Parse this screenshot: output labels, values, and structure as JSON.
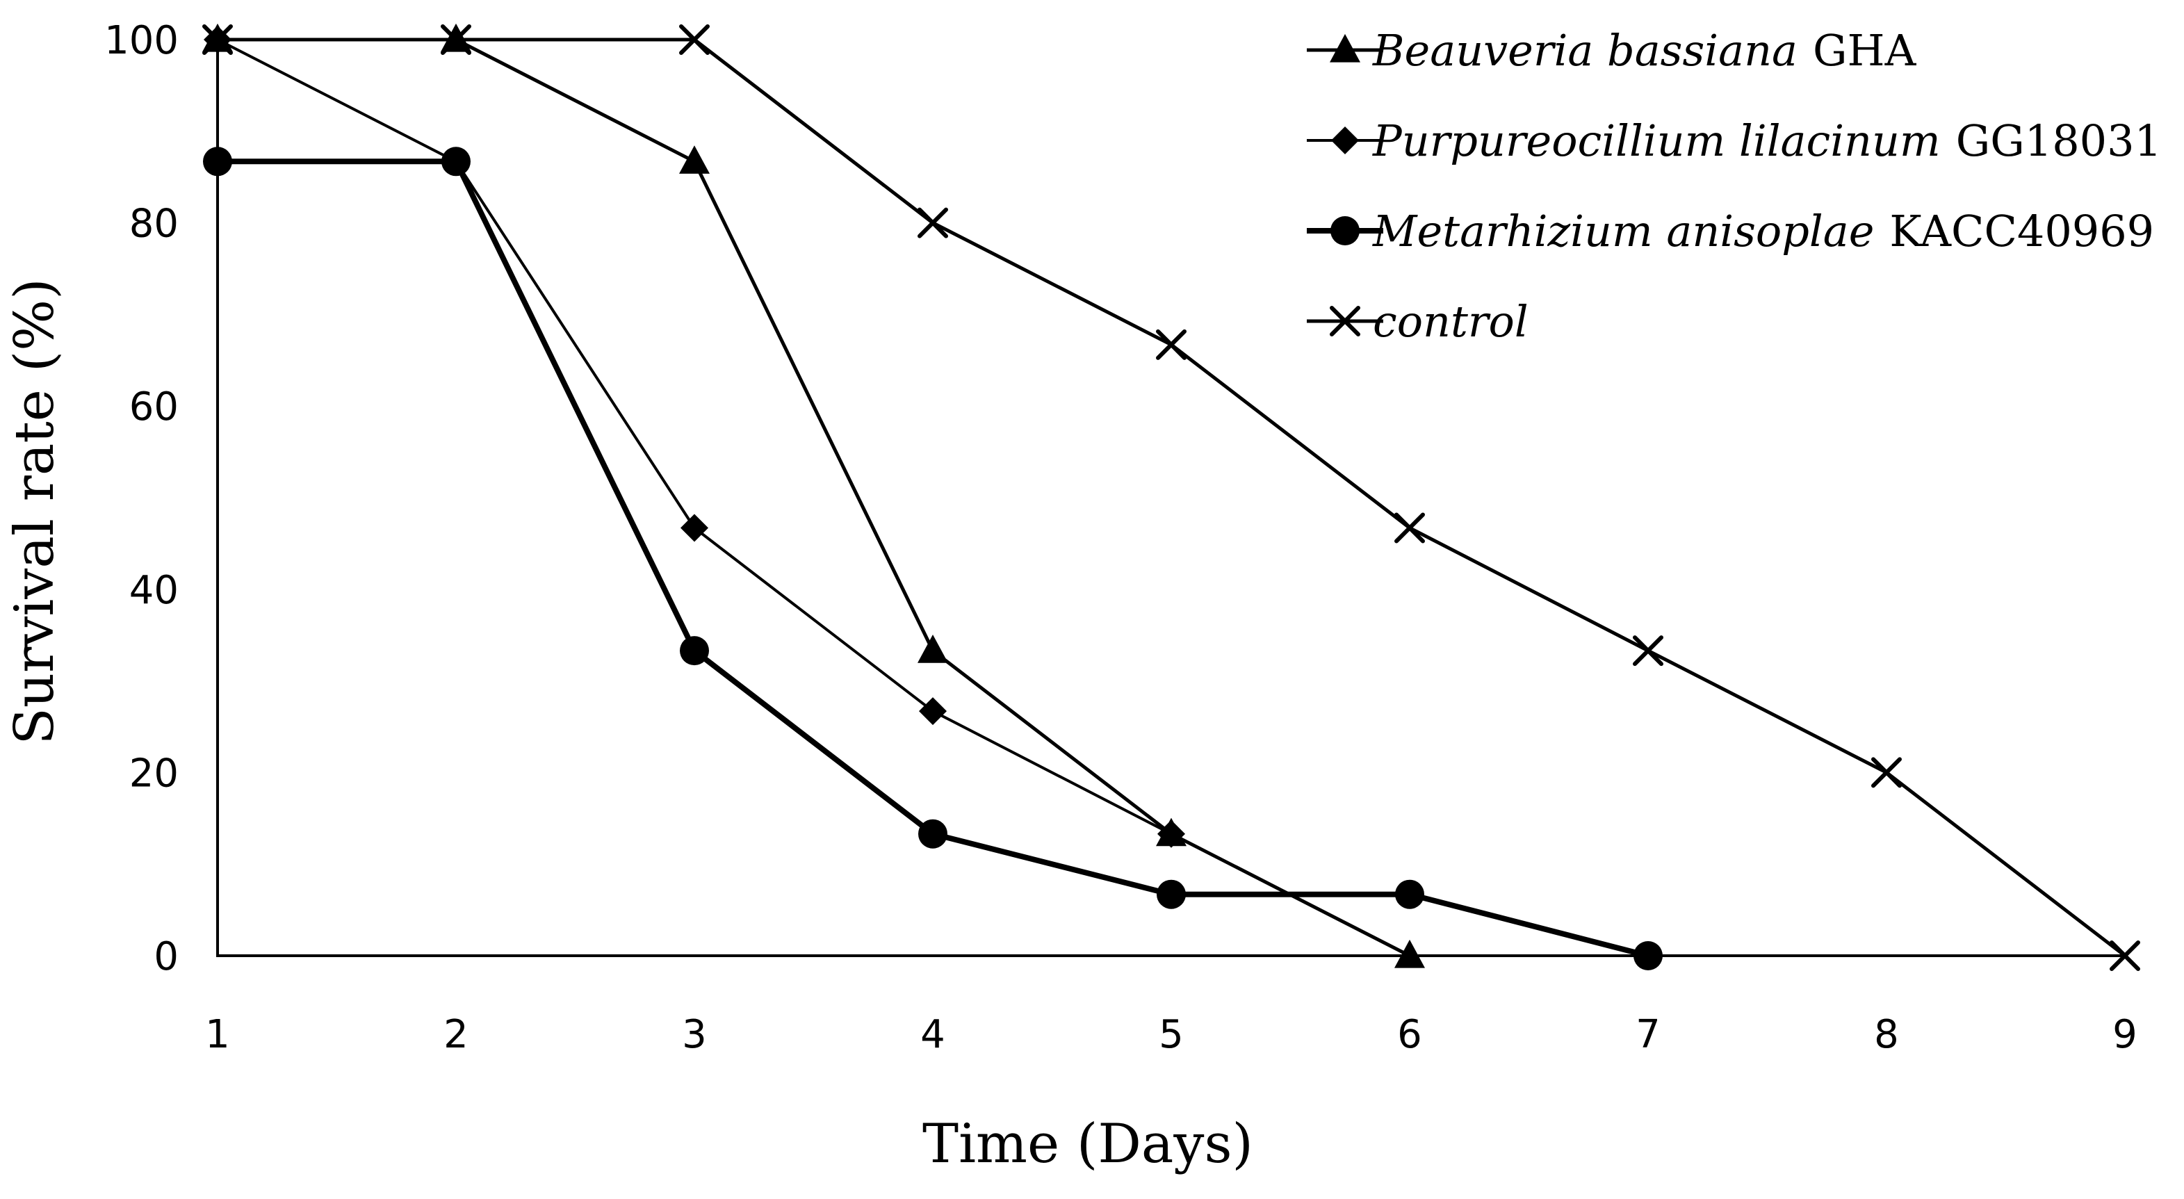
{
  "chart_data": {
    "type": "line",
    "title": "",
    "xlabel": "Time (Days)",
    "ylabel": "Survival rate (%)",
    "x": [
      1,
      2,
      3,
      4,
      5,
      6,
      7,
      8,
      9
    ],
    "xlim": [
      1,
      9
    ],
    "ylim": [
      0,
      100
    ],
    "yticks": [
      0,
      20,
      40,
      60,
      80,
      100
    ],
    "grid": false,
    "legend_position": "top-right",
    "series": [
      {
        "name": "Beauveria bassiana GHA",
        "name_italic": "Beauveria bassiana",
        "name_plain": "GHA",
        "marker": "triangle",
        "x": [
          1,
          2,
          3,
          4,
          5,
          6
        ],
        "values": [
          100,
          100,
          86.7,
          33.3,
          13.3,
          0
        ]
      },
      {
        "name": "Purpureocillium lilacinum GG18031",
        "name_italic": "Purpureocillium lilacinum",
        "name_plain": "GG18031",
        "marker": "diamond",
        "x": [
          1,
          2,
          3,
          4,
          5
        ],
        "values": [
          100,
          86.7,
          46.7,
          26.7,
          13.3
        ]
      },
      {
        "name": "Metarhizium anisoplae KACC40969",
        "name_italic": "Metarhizium anisoplae",
        "name_plain": "KACC40969",
        "marker": "circle",
        "x": [
          1,
          2,
          3,
          4,
          5,
          6,
          7
        ],
        "values": [
          86.7,
          86.7,
          33.3,
          13.3,
          6.7,
          6.7,
          0
        ]
      },
      {
        "name": "control",
        "name_italic": "control",
        "name_plain": "",
        "marker": "x",
        "x": [
          1,
          2,
          3,
          4,
          5,
          6,
          7,
          8,
          9
        ],
        "values": [
          100,
          100,
          100,
          80,
          66.7,
          46.7,
          33.3,
          20,
          0
        ]
      }
    ],
    "colors": {
      "line": "#000000",
      "background": "#ffffff"
    }
  }
}
